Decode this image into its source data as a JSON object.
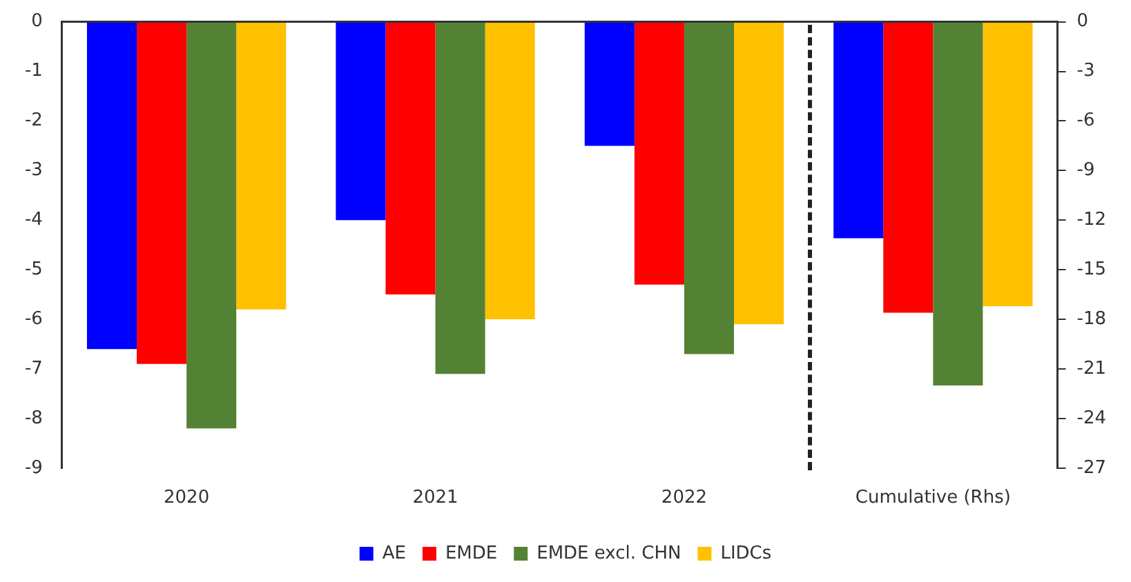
{
  "chart_data": {
    "type": "bar",
    "categories": [
      "2020",
      "2021",
      "2022",
      "Cumulative (Rhs)"
    ],
    "series": [
      {
        "name": "AE",
        "color": "#0000ff",
        "values": [
          -6.6,
          -4.0,
          -2.5,
          null
        ]
      },
      {
        "name": "EMDE",
        "color": "#ff0000",
        "values": [
          -6.9,
          -5.5,
          -5.3,
          null
        ]
      },
      {
        "name": "EMDE excl. CHN",
        "color": "#548235",
        "values": [
          -8.2,
          -7.1,
          -6.7,
          null
        ]
      },
      {
        "name": "LIDCs",
        "color": "#ffc000",
        "values": [
          -5.8,
          -6.0,
          -6.1,
          null
        ]
      },
      {
        "color": "#0000ff",
        "axis": "y2",
        "values": [
          null,
          null,
          null,
          -13.1
        ]
      },
      {
        "color": "#ff0000",
        "axis": "y2",
        "values": [
          null,
          null,
          null,
          -17.6
        ]
      },
      {
        "color": "#548235",
        "axis": "y2",
        "values": [
          null,
          null,
          null,
          -22
        ]
      },
      {
        "color": "#ffc000",
        "axis": "y2",
        "values": [
          null,
          null,
          null,
          -17.2
        ]
      }
    ],
    "ylim": [
      -9,
      0
    ],
    "yticks": [
      0,
      -1,
      -2,
      -3,
      -4,
      -5,
      -6,
      -7,
      -8,
      -9
    ],
    "y2lim": [
      -27,
      0
    ],
    "y2ticks": [
      0,
      -3,
      -6,
      -9,
      -12,
      -15,
      -18,
      -21,
      -24,
      -27
    ],
    "grid": false,
    "legend": "bottom"
  }
}
